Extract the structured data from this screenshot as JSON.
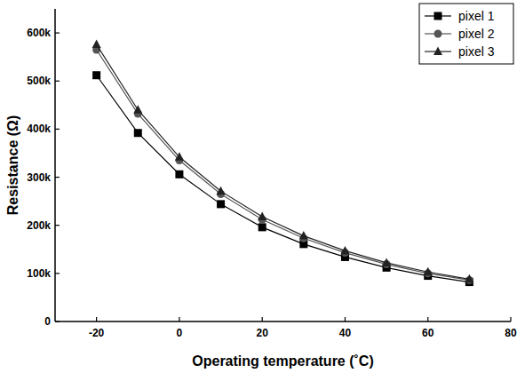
{
  "chart_data": {
    "type": "line",
    "x_label": "Operating temperature (˚C)",
    "y_label": "Resistance (Ω)",
    "x": [
      -20,
      -10,
      0,
      10,
      20,
      30,
      40,
      50,
      60,
      70
    ],
    "series": [
      {
        "name": "pixel 1",
        "color": "#000000",
        "marker": "square",
        "values": [
          512000,
          392000,
          306000,
          244000,
          196000,
          161000,
          134000,
          112000,
          95000,
          82000
        ]
      },
      {
        "name": "pixel 2",
        "color": "#555555",
        "marker": "circle",
        "values": [
          565000,
          432000,
          335000,
          265000,
          212000,
          173000,
          143000,
          119000,
          100000,
          86000
        ]
      },
      {
        "name": "pixel 3",
        "color": "#222222",
        "marker": "triangle",
        "values": [
          576000,
          440000,
          342000,
          271000,
          218000,
          178000,
          147000,
          122000,
          103000,
          88000
        ]
      }
    ],
    "xlim": [
      -30,
      80
    ],
    "xticks": [
      -20,
      0,
      20,
      40,
      60,
      80
    ],
    "ylim": [
      0,
      650000
    ],
    "yticks": [
      0,
      {
        "value": 100000,
        "label": "100k"
      },
      {
        "value": 200000,
        "label": "200k"
      },
      {
        "value": 300000,
        "label": "300k"
      },
      {
        "value": 400000,
        "label": "400k"
      },
      {
        "value": 500000,
        "label": "500k"
      },
      {
        "value": 600000,
        "label": "600k"
      }
    ],
    "legend": "top-right",
    "grid": false
  }
}
